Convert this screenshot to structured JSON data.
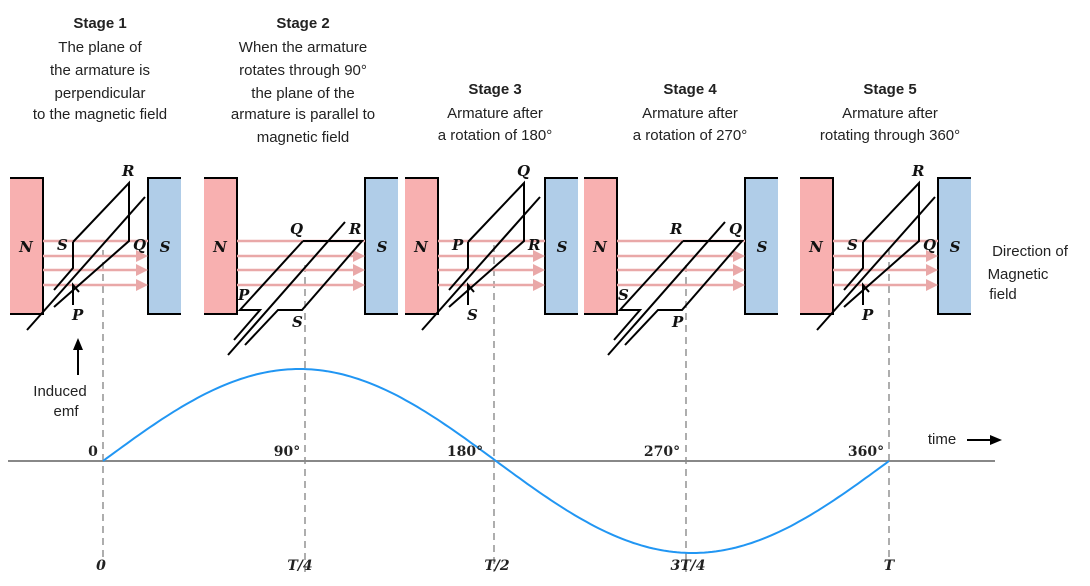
{
  "stages": [
    {
      "title": "Stage 1",
      "lines": [
        "The plane of",
        "the armature is",
        "perpendicular",
        "to the magnetic field"
      ],
      "labels": {
        "top": "R",
        "left": "S",
        "right": "Q",
        "bottom": "P"
      }
    },
    {
      "title": "Stage 2",
      "lines": [
        "When the armature",
        "rotates through 90°",
        "the plane of the",
        "armature is parallel to",
        "magnetic field"
      ],
      "labels": {
        "top_left": "Q",
        "top_right": "R",
        "left": "P",
        "bottom": "S"
      }
    },
    {
      "title": "Stage 3",
      "lines": [
        "Armature after",
        "a rotation of 180°"
      ],
      "labels": {
        "top": "Q",
        "left": "P",
        "right": "R",
        "bottom": "S"
      }
    },
    {
      "title": "Stage 4",
      "lines": [
        "Armature after",
        "a rotation of 270°"
      ],
      "labels": {
        "top_left": "R",
        "top_right": "Q",
        "left": "S",
        "bottom": "P"
      }
    },
    {
      "title": "Stage 5",
      "lines": [
        "Armature after",
        "rotating through 360°"
      ],
      "labels": {
        "top": "R",
        "left": "S",
        "right": "Q",
        "bottom": "P"
      }
    }
  ],
  "magnets": {
    "north": "N",
    "south": "S",
    "north_color": "#f8b0b0",
    "south_color": "#b0cde8"
  },
  "field_label": [
    "Direction of",
    "Magnetic",
    "field"
  ],
  "emf_label": [
    "Induced",
    "emf"
  ],
  "time_label": "time",
  "angle_labels": [
    "0",
    "90°",
    "180°",
    "270°",
    "360°"
  ],
  "time_ticks": [
    "0",
    "T/4",
    "T/2",
    "3T/4",
    "T"
  ],
  "curve_color": "#2196f3"
}
